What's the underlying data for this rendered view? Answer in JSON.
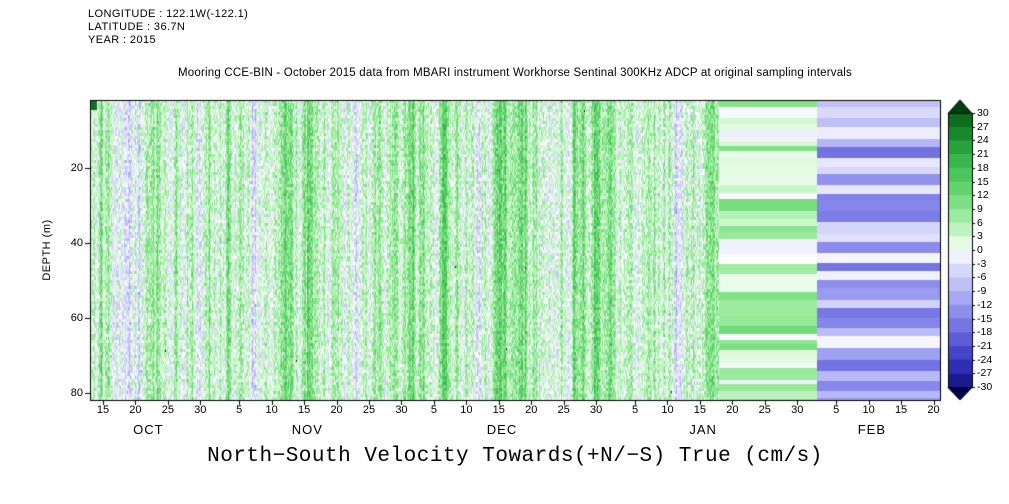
{
  "header": {
    "longitude": "LONGITUDE : 122.1W(-122.1)",
    "latitude": "LATITUDE : 36.7N",
    "year": "YEAR : 2015"
  },
  "title": "Mooring CCE-BIN - October 2015 data from MBARI instrument Workhorse Sentinal 300KHz ADCP at original sampling intervals",
  "footer_title": "North−South Velocity Towards(+N/−S) True (cm/s)",
  "chart_data": {
    "type": "heatmap",
    "title": "Mooring CCE-BIN - October 2015 data from MBARI instrument Workhorse Sentinal 300KHz ADCP at original sampling intervals",
    "value_label": "North-South Velocity Towards(+N/-S) True (cm/s)",
    "units": "cm/s",
    "ylabel": "DEPTH (m)",
    "depth_range_m": [
      2,
      82
    ],
    "time_start": "2015-10-13",
    "time_end": "2016-02-21",
    "total_days": 131,
    "y_ticks": [
      {
        "label": "20",
        "depth": 20
      },
      {
        "label": "40",
        "depth": 40
      },
      {
        "label": "60",
        "depth": 60
      },
      {
        "label": "80",
        "depth": 80
      }
    ],
    "x_ticks": [
      {
        "label": "15",
        "day": 2
      },
      {
        "label": "20",
        "day": 7
      },
      {
        "label": "25",
        "day": 12
      },
      {
        "label": "30",
        "day": 17
      },
      {
        "label": "5",
        "day": 23
      },
      {
        "label": "10",
        "day": 28
      },
      {
        "label": "15",
        "day": 33
      },
      {
        "label": "20",
        "day": 38
      },
      {
        "label": "25",
        "day": 43
      },
      {
        "label": "30",
        "day": 48
      },
      {
        "label": "5",
        "day": 53
      },
      {
        "label": "10",
        "day": 58
      },
      {
        "label": "15",
        "day": 63
      },
      {
        "label": "20",
        "day": 68
      },
      {
        "label": "25",
        "day": 73
      },
      {
        "label": "30",
        "day": 78
      },
      {
        "label": "5",
        "day": 84
      },
      {
        "label": "10",
        "day": 89
      },
      {
        "label": "15",
        "day": 94
      },
      {
        "label": "20",
        "day": 99
      },
      {
        "label": "25",
        "day": 104
      },
      {
        "label": "30",
        "day": 109
      },
      {
        "label": "5",
        "day": 115
      },
      {
        "label": "10",
        "day": 120
      },
      {
        "label": "15",
        "day": 125
      },
      {
        "label": "20",
        "day": 130
      }
    ],
    "month_labels": [
      {
        "label": "OCT",
        "day": 9
      },
      {
        "label": "NOV",
        "day": 33.5
      },
      {
        "label": "DEC",
        "day": 63.5
      },
      {
        "label": "JAN",
        "day": 94.5
      },
      {
        "label": "FEB",
        "day": 120.5
      }
    ],
    "colorbar": {
      "ticks": [
        30,
        27,
        24,
        21,
        18,
        15,
        12,
        9,
        6,
        3,
        0,
        -3,
        -6,
        -9,
        -12,
        -15,
        -18,
        -21,
        -24,
        -27,
        -30
      ],
      "units": "cm/s",
      "orientation": "vertical-right",
      "color_stops": [
        {
          "v": 33,
          "c": "#00400e"
        },
        {
          "v": 27,
          "c": "#0f7d23"
        },
        {
          "v": 21,
          "c": "#2fae46"
        },
        {
          "v": 15,
          "c": "#55cd62"
        },
        {
          "v": 9,
          "c": "#8ce68f"
        },
        {
          "v": 3,
          "c": "#cdf7cd"
        },
        {
          "v": 0,
          "c": "#ffffff"
        },
        {
          "v": -3,
          "c": "#e3e3fc"
        },
        {
          "v": -9,
          "c": "#b4b4f7"
        },
        {
          "v": -15,
          "c": "#8181ea"
        },
        {
          "v": -21,
          "c": "#5151d2"
        },
        {
          "v": -27,
          "c": "#2424a8"
        },
        {
          "v": -33,
          "c": "#00004d"
        }
      ]
    },
    "regions": [
      {
        "name": "measured-high-frequency",
        "start_day": 0,
        "end_day": 97,
        "description": "Speckled measured velocities with fine vertical striping; greens (northward) mixed with white and pale blue (near-zero/southward); typical values -10 to +14 cm/s",
        "mean_cms": 3,
        "noise_cms": 12
      },
      {
        "name": "smooth-northward",
        "start_day": 97,
        "end_day": 112,
        "description": "Smooth horizontal green/white bands across all depths, northward flow",
        "value_range_cms": [
          -2,
          12
        ]
      },
      {
        "name": "smooth-southward",
        "start_day": 112,
        "end_day": 131,
        "description": "Smooth horizontal blue/lavender bands across all depths, southward flow",
        "value_range_cms": [
          -20,
          -1
        ]
      }
    ],
    "annotations": [
      {
        "name": "dark-green-patch",
        "day": 0.3,
        "depth_m": 3,
        "value_cms": 28,
        "description": "Small dark green block at the shallowest bins at the very start of the record"
      }
    ]
  }
}
